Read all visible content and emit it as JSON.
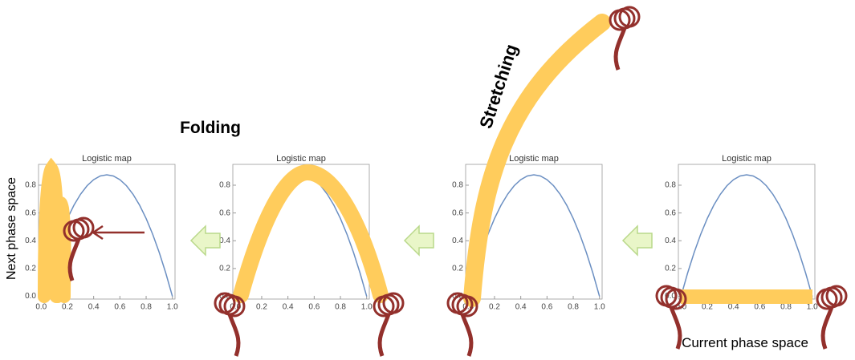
{
  "labels": {
    "folding": "Folding",
    "stretching": "Stretching",
    "next": "Next phase space",
    "current": "Current phase space"
  },
  "chart_data": [
    {
      "type": "line",
      "title": "Logistic map",
      "color": "#6b8fc2",
      "x": [
        0,
        0.05,
        0.1,
        0.15,
        0.2,
        0.25,
        0.3,
        0.35,
        0.4,
        0.45,
        0.5,
        0.55,
        0.6,
        0.65,
        0.7,
        0.75,
        0.8,
        0.85,
        0.9,
        0.95,
        1
      ],
      "values": [
        0,
        0.16625,
        0.315,
        0.44625,
        0.56,
        0.65625,
        0.735,
        0.79625,
        0.84,
        0.86625,
        0.875,
        0.86625,
        0.84,
        0.79625,
        0.735,
        0.65625,
        0.56,
        0.44625,
        0.315,
        0.16625,
        0
      ],
      "xlim": [
        -0.02,
        1.02
      ],
      "ylim": [
        -0.02,
        0.95
      ],
      "xticks": [
        {
          "value": 0,
          "label": "0.0"
        },
        0.2,
        0.4,
        0.6,
        0.8,
        {
          "value": 1,
          "label": "1.0"
        }
      ],
      "yticks": [
        {
          "value": 0,
          "label": "0.0"
        },
        0.2,
        0.4,
        0.6,
        0.8
      ]
    },
    {
      "type": "line",
      "title": "Logistic map",
      "color": "#6b8fc2",
      "x": [
        0,
        0.05,
        0.1,
        0.15,
        0.2,
        0.25,
        0.3,
        0.35,
        0.4,
        0.45,
        0.5,
        0.55,
        0.6,
        0.65,
        0.7,
        0.75,
        0.8,
        0.85,
        0.9,
        0.95,
        1
      ],
      "values": [
        0,
        0.16625,
        0.315,
        0.44625,
        0.56,
        0.65625,
        0.735,
        0.79625,
        0.84,
        0.86625,
        0.875,
        0.86625,
        0.84,
        0.79625,
        0.735,
        0.65625,
        0.56,
        0.44625,
        0.315,
        0.16625,
        0
      ],
      "xlim": [
        -0.02,
        1.02
      ],
      "ylim": [
        -0.02,
        0.95
      ],
      "xticks": [
        {
          "value": 0,
          "label": "0.0"
        },
        0.2,
        0.4,
        0.6,
        0.8,
        {
          "value": 1,
          "label": "1.0"
        }
      ],
      "yticks": [
        {
          "value": 0,
          "label": "0.0"
        },
        0.2,
        0.4,
        0.6,
        0.8
      ]
    },
    {
      "type": "line",
      "title": "Logistic map",
      "color": "#6b8fc2",
      "x": [
        0,
        0.05,
        0.1,
        0.15,
        0.2,
        0.25,
        0.3,
        0.35,
        0.4,
        0.45,
        0.5,
        0.55,
        0.6,
        0.65,
        0.7,
        0.75,
        0.8,
        0.85,
        0.9,
        0.95,
        1
      ],
      "values": [
        0,
        0.16625,
        0.315,
        0.44625,
        0.56,
        0.65625,
        0.735,
        0.79625,
        0.84,
        0.86625,
        0.875,
        0.86625,
        0.84,
        0.79625,
        0.735,
        0.65625,
        0.56,
        0.44625,
        0.315,
        0.16625,
        0
      ],
      "xlim": [
        -0.02,
        1.02
      ],
      "ylim": [
        -0.02,
        0.95
      ],
      "xticks": [
        {
          "value": 0,
          "label": "0.0"
        },
        0.2,
        0.4,
        0.6,
        0.8,
        {
          "value": 1,
          "label": "1.0"
        }
      ],
      "yticks": [
        {
          "value": 0,
          "label": "0.0"
        },
        0.2,
        0.4,
        0.6,
        0.8
      ]
    },
    {
      "type": "line",
      "title": "Logistic map",
      "color": "#6b8fc2",
      "x": [
        0,
        0.05,
        0.1,
        0.15,
        0.2,
        0.25,
        0.3,
        0.35,
        0.4,
        0.45,
        0.5,
        0.55,
        0.6,
        0.65,
        0.7,
        0.75,
        0.8,
        0.85,
        0.9,
        0.95,
        1
      ],
      "values": [
        0,
        0.16625,
        0.315,
        0.44625,
        0.56,
        0.65625,
        0.735,
        0.79625,
        0.84,
        0.86625,
        0.875,
        0.86625,
        0.84,
        0.79625,
        0.735,
        0.65625,
        0.56,
        0.44625,
        0.315,
        0.16625,
        0
      ],
      "xlim": [
        -0.02,
        1.02
      ],
      "ylim": [
        -0.02,
        0.95
      ],
      "xticks": [
        {
          "value": 0,
          "label": "0.0"
        },
        0.2,
        0.4,
        0.6,
        0.8,
        {
          "value": 1,
          "label": "1.0"
        }
      ],
      "yticks": [
        {
          "value": 0,
          "label": "0.0"
        },
        0.2,
        0.4,
        0.6,
        0.8
      ]
    }
  ]
}
